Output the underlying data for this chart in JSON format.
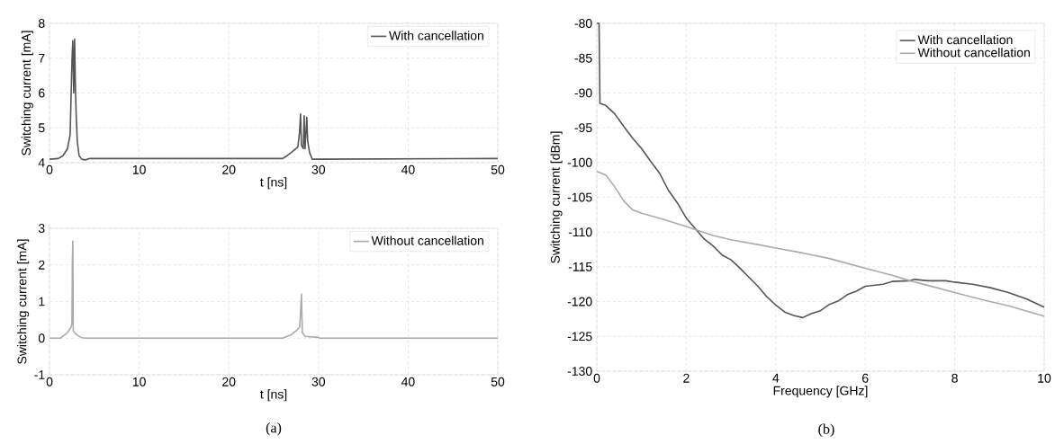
{
  "chart_data": [
    {
      "type": "line",
      "xlabel": "t [ns]",
      "ylabel": "Switching current [mA]",
      "xlim": [
        0,
        50
      ],
      "ylim": [
        4,
        8
      ],
      "xticks": [
        0,
        10,
        20,
        30,
        40,
        50
      ],
      "yticks": [
        4,
        5,
        6,
        7,
        8
      ],
      "grid": true,
      "legend": "top right",
      "series": [
        {
          "name": "With cancellation",
          "color": "#555555",
          "x": [
            0,
            1,
            1.5,
            2,
            2.3,
            2.5,
            2.6,
            2.7,
            2.8,
            2.9,
            3.0,
            3.1,
            3.3,
            3.6,
            4,
            4.5,
            5,
            26,
            26.5,
            27,
            27.7,
            27.9,
            28.0,
            28.1,
            28.3,
            28.4,
            28.5,
            28.7,
            28.8,
            29,
            29.3,
            30,
            50
          ],
          "values": [
            4.1,
            4.12,
            4.2,
            4.4,
            4.8,
            6.9,
            7.5,
            6.0,
            7.55,
            6.0,
            5.2,
            4.6,
            4.2,
            4.1,
            4.08,
            4.12,
            4.12,
            4.12,
            4.2,
            4.3,
            4.45,
            4.9,
            5.4,
            4.5,
            4.4,
            5.35,
            4.4,
            5.3,
            4.6,
            4.3,
            4.1,
            4.1,
            4.12
          ]
        }
      ]
    },
    {
      "type": "line",
      "xlabel": "t [ns]",
      "ylabel": "Switching current [mA]",
      "xlim": [
        0,
        50
      ],
      "ylim": [
        -1,
        3
      ],
      "xticks": [
        0,
        10,
        20,
        30,
        40,
        50
      ],
      "yticks": [
        -1,
        0,
        1,
        2,
        3
      ],
      "grid": true,
      "legend": "top right",
      "annotations": [
        "(a)"
      ],
      "series": [
        {
          "name": "Without cancellation",
          "color": "#aaaaaa",
          "x": [
            0,
            1.2,
            1.5,
            2,
            2.4,
            2.5,
            2.55,
            2.6,
            2.65,
            3,
            3.5,
            4,
            26,
            26.5,
            27,
            27.5,
            27.9,
            28.0,
            28.1,
            28.2,
            28.5,
            30,
            30.1,
            50
          ],
          "values": [
            0,
            0,
            0.05,
            0.15,
            0.3,
            0.4,
            2.1,
            2.65,
            0.2,
            0.1,
            0.02,
            0,
            0,
            0.05,
            0.1,
            0.2,
            0.3,
            0.7,
            1.2,
            0.15,
            0.05,
            0.02,
            0,
            0
          ]
        }
      ]
    },
    {
      "type": "line",
      "xlabel": "Frequency [GHz]",
      "ylabel": "Switching current [dBm]",
      "xlim": [
        0,
        10
      ],
      "ylim": [
        -130,
        -80
      ],
      "xticks": [
        0,
        2,
        4,
        6,
        8,
        10
      ],
      "yticks": [
        -130,
        -125,
        -120,
        -115,
        -110,
        -105,
        -100,
        -95,
        -90,
        -85,
        -80
      ],
      "grid": true,
      "legend": "top right",
      "annotations": [
        "(b)"
      ],
      "series": [
        {
          "name": "With cancellation",
          "color": "#555555",
          "x": [
            0,
            0.05,
            0.07,
            0.2,
            0.4,
            0.6,
            0.8,
            1.0,
            1.2,
            1.4,
            1.6,
            1.8,
            2.0,
            2.2,
            2.4,
            2.6,
            2.8,
            3.0,
            3.2,
            3.4,
            3.6,
            3.8,
            4.0,
            4.2,
            4.4,
            4.6,
            4.8,
            5.0,
            5.2,
            5.4,
            5.6,
            5.8,
            6.0,
            6.4,
            6.6,
            7.0,
            7.1,
            7.4,
            7.8,
            8.0,
            8.4,
            8.8,
            9.2,
            9.6,
            10
          ],
          "values": [
            -80,
            -80,
            -91.5,
            -91.8,
            -93,
            -94.8,
            -96.5,
            -98,
            -99.8,
            -101.5,
            -104,
            -105.8,
            -108,
            -109.5,
            -111,
            -112,
            -113.3,
            -114,
            -115.2,
            -116.5,
            -117.8,
            -119.3,
            -120.5,
            -121.5,
            -122,
            -122.3,
            -121.7,
            -121.3,
            -120.4,
            -119.9,
            -119,
            -118.5,
            -117.8,
            -117.5,
            -117.1,
            -117,
            -116.8,
            -117,
            -117,
            -117.2,
            -117.5,
            -118,
            -118.7,
            -119.6,
            -120.8
          ]
        },
        {
          "name": "Without cancellation",
          "color": "#aaaaaa",
          "x": [
            0,
            0.2,
            0.4,
            0.6,
            0.8,
            1.0,
            1.4,
            2.0,
            2.6,
            3.0,
            3.6,
            4.0,
            4.6,
            5.2,
            6.0,
            6.6,
            7.0,
            7.6,
            8.0,
            8.6,
            9.2,
            10
          ],
          "values": [
            -101.3,
            -101.8,
            -103.5,
            -105.5,
            -106.8,
            -107.3,
            -108,
            -109.2,
            -110.5,
            -111.1,
            -111.8,
            -112.3,
            -113,
            -113.8,
            -115.2,
            -116.2,
            -117,
            -118,
            -118.7,
            -119.7,
            -120.6,
            -122.1
          ]
        }
      ]
    }
  ]
}
